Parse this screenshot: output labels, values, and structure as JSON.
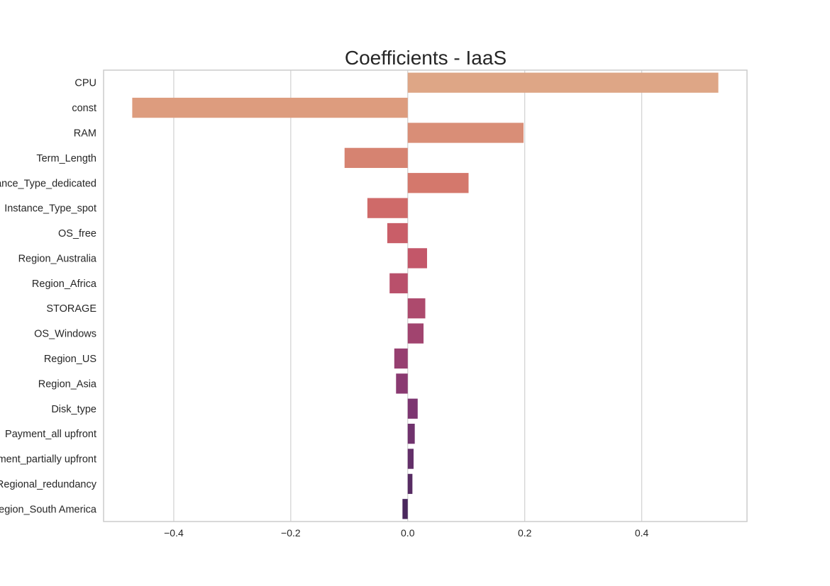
{
  "chart_data": {
    "type": "bar",
    "orientation": "horizontal",
    "title": "Coefficients - IaaS",
    "xlabel": "",
    "ylabel": "",
    "xlim": [
      -0.52,
      0.58
    ],
    "xticks": [
      -0.4,
      -0.2,
      0.0,
      0.2,
      0.4
    ],
    "xtick_labels": [
      "−0.4",
      "−0.2",
      "0.0",
      "0.2",
      "0.4"
    ],
    "grid": "vertical",
    "categories": [
      "CPU",
      "const",
      "RAM",
      "Term_Length",
      "Instance_Type_dedicated",
      "Instance_Type_spot",
      "OS_free",
      "Region_Australia",
      "Region_Africa",
      "STORAGE",
      "OS_Windows",
      "Region_US",
      "Region_Asia",
      "Disk_type",
      "Payment_all upfront",
      "Payment_partially upfront",
      "Regional_redundancy",
      "Region_South America"
    ],
    "values": [
      0.531,
      -0.471,
      0.198,
      -0.108,
      0.104,
      -0.069,
      -0.035,
      0.033,
      -0.031,
      0.03,
      0.027,
      -0.023,
      -0.02,
      0.017,
      0.012,
      0.01,
      0.008,
      -0.009
    ],
    "colors": [
      "#dea686",
      "#dd9c7e",
      "#d98e77",
      "#d68371",
      "#d4786c",
      "#cf6a69",
      "#c95e68",
      "#c35769",
      "#b9506b",
      "#ad4a6d",
      "#a1446f",
      "#963f70",
      "#8a3a71",
      "#7d3671",
      "#70326d",
      "#632f69",
      "#572c63",
      "#4a285d"
    ],
    "palette": "flare"
  }
}
